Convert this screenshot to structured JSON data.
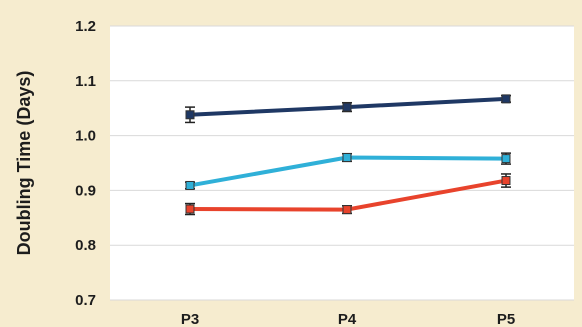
{
  "chart_data": {
    "type": "line",
    "title": "",
    "xlabel": "",
    "ylabel": "Doubling Time (Days)",
    "categories": [
      "P3",
      "P4",
      "P5"
    ],
    "ylim": [
      0.7,
      1.2
    ],
    "yticks": [
      "0.7",
      "0.8",
      "0.9",
      "1.0",
      "1.1",
      "1.2"
    ],
    "grid": true,
    "legend": "none",
    "series": [
      {
        "values": [
          1.038,
          1.052,
          1.067
        ],
        "errors": [
          0.014,
          0.008,
          0.006
        ],
        "color": "#1f3864"
      },
      {
        "values": [
          0.909,
          0.96,
          0.958
        ],
        "errors": [
          0.006,
          0.007,
          0.01
        ],
        "color": "#2fb0d8"
      },
      {
        "values": [
          0.866,
          0.865,
          0.918
        ],
        "errors": [
          0.01,
          0.007,
          0.012
        ],
        "color": "#e8432c"
      }
    ]
  }
}
